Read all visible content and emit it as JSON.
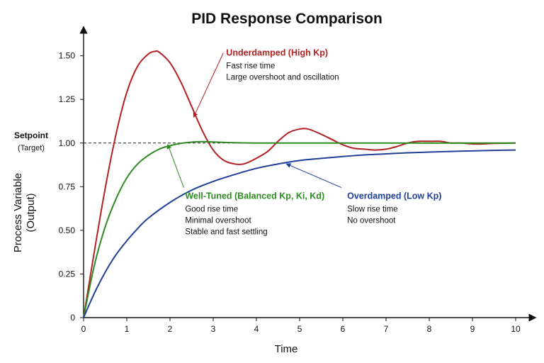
{
  "chart_data": {
    "type": "line",
    "title": "PID Response Comparison",
    "xlabel": "Time",
    "ylabel": [
      "Process Variable",
      "(Output)"
    ],
    "xlim": [
      0,
      10
    ],
    "ylim": [
      0,
      1.6
    ],
    "x_ticks": [
      "0",
      "1",
      "2",
      "3",
      "4",
      "5",
      "6",
      "7",
      "8",
      "9",
      "10"
    ],
    "y_ticks": [
      "0",
      "0.25",
      "0.50",
      "0.75",
      "1.00",
      "1.25",
      "1.50"
    ],
    "y_tick_values": [
      0,
      0.25,
      0.5,
      0.75,
      1.0,
      1.25,
      1.5
    ],
    "grid": false,
    "setpoint": {
      "value": 1.0,
      "label": "Setpoint",
      "sublabel": "(Target)"
    },
    "series": [
      {
        "name": "Underdamped (High Kp)",
        "color": "#b22222",
        "x": [
          0,
          0.25,
          0.5,
          0.75,
          1.0,
          1.25,
          1.5,
          1.65,
          1.75,
          2.0,
          2.25,
          2.5,
          2.75,
          3.0,
          3.25,
          3.5,
          3.7,
          3.9,
          4.25,
          4.5,
          4.75,
          5.0,
          5.2,
          5.5,
          5.75,
          6.0,
          6.25,
          6.5,
          6.75,
          7.0,
          7.25,
          7.5,
          7.75,
          8.0,
          8.25,
          8.5,
          8.75,
          9.0,
          9.25,
          9.5,
          10.0
        ],
        "y": [
          0,
          0.38,
          0.74,
          1.05,
          1.29,
          1.44,
          1.51,
          1.525,
          1.52,
          1.46,
          1.35,
          1.21,
          1.07,
          0.96,
          0.9,
          0.88,
          0.88,
          0.9,
          0.95,
          1.01,
          1.06,
          1.08,
          1.08,
          1.05,
          1.02,
          0.99,
          0.97,
          0.965,
          0.96,
          0.965,
          0.98,
          1.0,
          1.01,
          1.01,
          1.01,
          1.0,
          1.0,
          0.995,
          0.995,
          0.998,
          1.0
        ]
      },
      {
        "name": "Well-Tuned (Balanced Kp, Ki, Kd)",
        "color": "#2e8b22",
        "x": [
          0,
          0.25,
          0.5,
          0.75,
          1.0,
          1.25,
          1.5,
          1.75,
          2.0,
          2.25,
          2.5,
          2.75,
          3.0,
          3.5,
          4.0,
          5.0,
          6.0,
          7.0,
          8.0,
          9.0,
          10.0
        ],
        "y": [
          0,
          0.3,
          0.52,
          0.68,
          0.8,
          0.88,
          0.93,
          0.965,
          0.985,
          0.998,
          1.005,
          1.008,
          1.006,
          1.002,
          1.0,
          1.0,
          1.0,
          1.0,
          1.0,
          1.0,
          1.0
        ]
      },
      {
        "name": "Overdamped (Low Kp)",
        "color": "#1f3f99",
        "x": [
          0,
          0.25,
          0.5,
          0.75,
          1.0,
          1.25,
          1.5,
          2.0,
          2.5,
          3.0,
          3.5,
          4.0,
          4.5,
          5.0,
          5.5,
          6.0,
          6.5,
          7.0,
          7.5,
          8.0,
          8.5,
          9.0,
          9.5,
          10.0
        ],
        "y": [
          0,
          0.14,
          0.26,
          0.36,
          0.44,
          0.51,
          0.57,
          0.66,
          0.73,
          0.78,
          0.82,
          0.855,
          0.88,
          0.9,
          0.912,
          0.923,
          0.932,
          0.938,
          0.944,
          0.948,
          0.952,
          0.955,
          0.958,
          0.96
        ]
      }
    ],
    "annotations": [
      {
        "series": 0,
        "title": "Underdamped (High Kp)",
        "lines": [
          "Fast rise time",
          "Large overshoot and oscillation"
        ],
        "arrow_to": [
          2.55,
          1.15
        ],
        "text_at": [
          3.3,
          1.5
        ]
      },
      {
        "series": 1,
        "title": "Well-Tuned (Balanced Kp, Ki, Kd)",
        "lines": [
          "Good rise time",
          "Minimal overshoot",
          "Stable and fast settling"
        ],
        "arrow_to": [
          1.95,
          0.99
        ],
        "text_at": [
          2.35,
          0.68
        ]
      },
      {
        "series": 2,
        "title": "Overdamped (Low Kp)",
        "lines": [
          "Slow rise time",
          "No overshoot"
        ],
        "arrow_to": [
          4.7,
          0.88
        ],
        "text_at": [
          6.1,
          0.68
        ]
      }
    ]
  }
}
